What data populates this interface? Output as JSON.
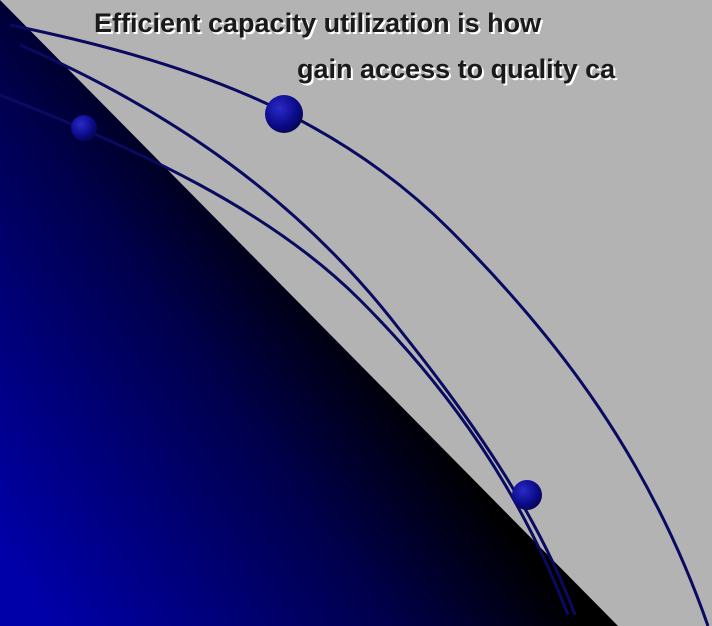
{
  "slide": {
    "title_lines": [
      "Efficient capacity utilization is how",
      "gain access to quality ca"
    ]
  },
  "colors": {
    "background": "#b3b3b3",
    "gradient_dark": "#000000",
    "gradient_blue": "#0000a8",
    "curve": "#0a0a60",
    "dot": "#101090"
  }
}
